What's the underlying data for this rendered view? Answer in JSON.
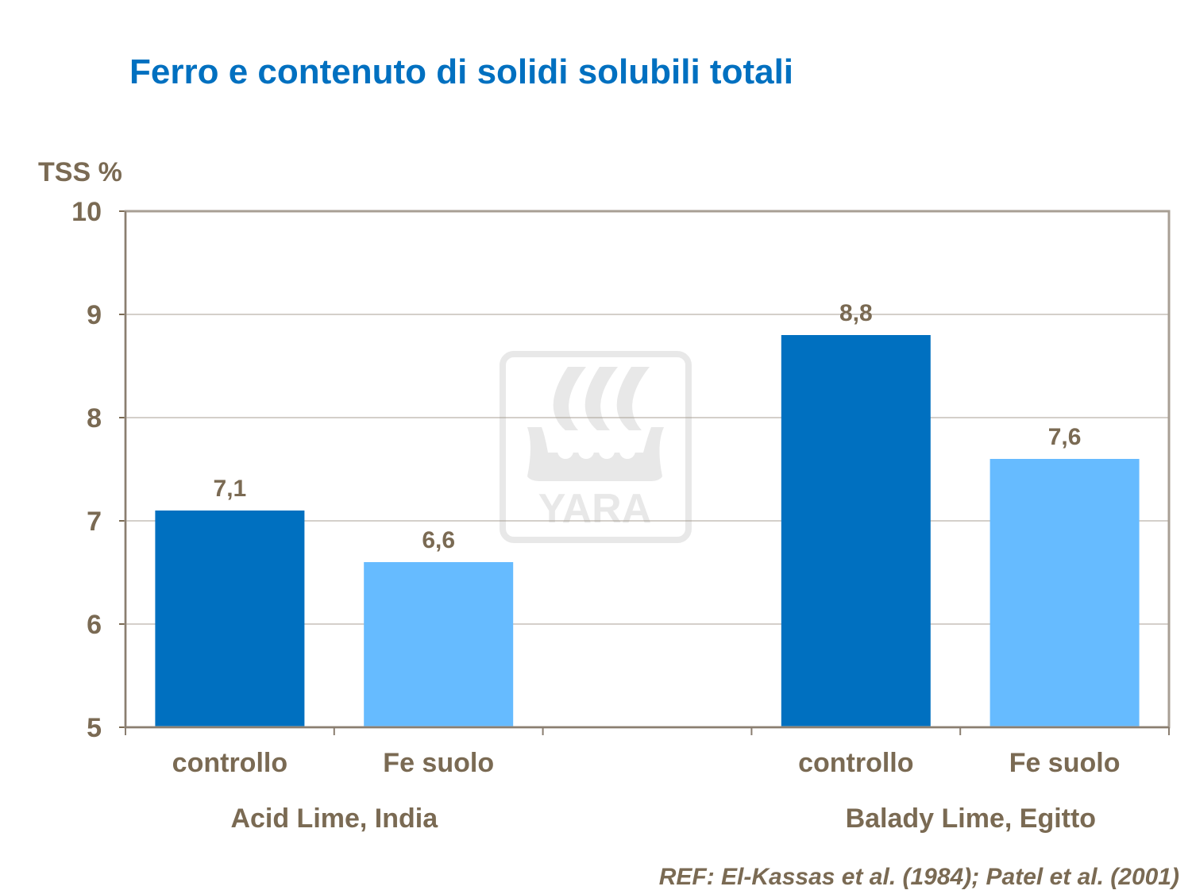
{
  "title": "Ferro e contenuto di solidi solubili totali",
  "reference": "REF: El-Kassas et al. (1984); Patel et al. (2001)",
  "logo_text": "YARA",
  "chart_data": {
    "type": "bar",
    "title": "Ferro e contenuto di solidi solubili totali",
    "ylabel": "TSS %",
    "xlabel": "",
    "ylim": [
      5,
      10
    ],
    "yticks": [
      5,
      6,
      7,
      8,
      9,
      10
    ],
    "grid": true,
    "categories": [
      "controllo",
      "Fe suolo",
      "",
      "controllo",
      "Fe suolo"
    ],
    "groups": [
      {
        "label": "Acid Lime, India",
        "categories": [
          "controllo",
          "Fe suolo"
        ]
      },
      {
        "label": "Balady Lime, Egitto",
        "categories": [
          "controllo",
          "Fe suolo"
        ]
      }
    ],
    "values": [
      7.1,
      6.6,
      null,
      8.8,
      7.6
    ],
    "data_labels": [
      "7,1",
      "6,6",
      "",
      "8,8",
      "7,6"
    ],
    "colors": [
      "#0070C0",
      "#66BBFF",
      null,
      "#0070C0",
      "#66BBFF"
    ]
  }
}
